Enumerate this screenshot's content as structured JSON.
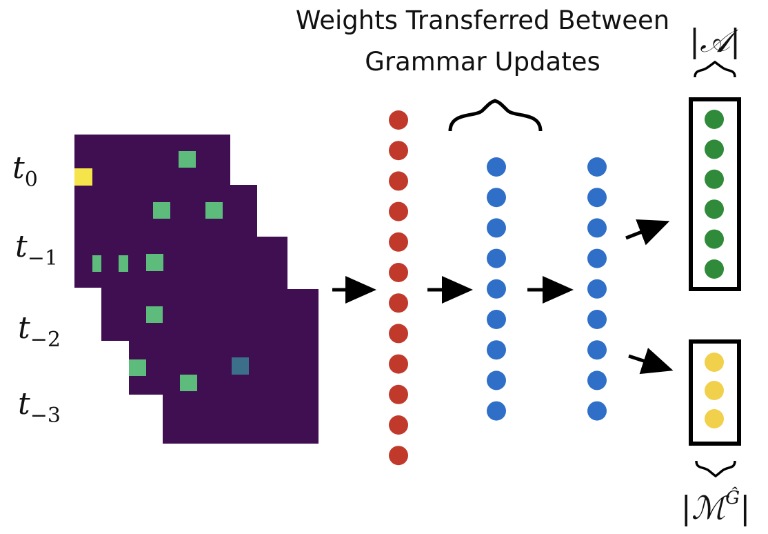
{
  "title": {
    "line1": "Weights Transferred Between",
    "line2": "Grammar Updates"
  },
  "time_labels": [
    {
      "base": "t",
      "sub": "0"
    },
    {
      "base": "t",
      "sub": "−1"
    },
    {
      "base": "t",
      "sub": "−2"
    },
    {
      "base": "t",
      "sub": "−3"
    }
  ],
  "output_labels": {
    "actions": "𝒜",
    "macros_base": "ℳ",
    "macros_sup": "Ĝ"
  },
  "colors": {
    "frame_bg": "#3f0f52",
    "cell_green": "#5dbb7b",
    "cell_yellow": "#f5e54a",
    "cell_teal": "#3c6f8a",
    "input_layer": "#c0392b",
    "hidden_layer": "#2f6fc8",
    "action_output": "#2f8a3a",
    "macro_output": "#f1d04b"
  },
  "layers": {
    "input_nodes": 12,
    "hidden1_nodes": 9,
    "hidden2_nodes": 9,
    "action_nodes": 6,
    "macro_nodes": 3
  }
}
